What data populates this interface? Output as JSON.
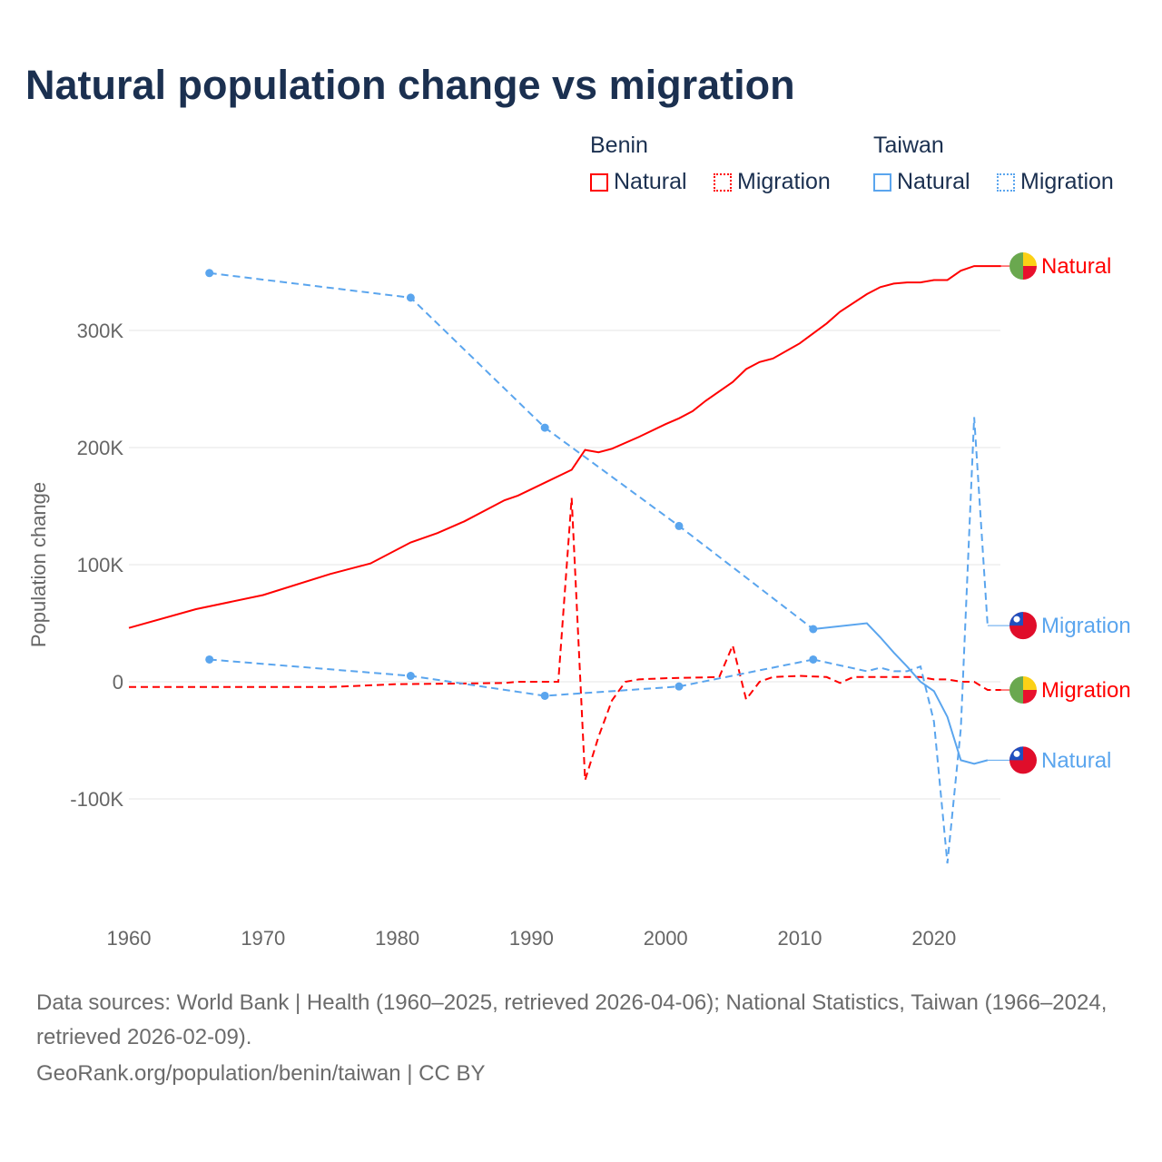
{
  "title": "Natural population change vs migration",
  "legend": {
    "groups": [
      {
        "name": "Benin",
        "color": "#ff0000",
        "items": [
          "Natural",
          "Migration"
        ]
      },
      {
        "name": "Taiwan",
        "color": "#5aa5ee",
        "items": [
          "Natural",
          "Migration"
        ]
      }
    ]
  },
  "footer": {
    "sources": "Data sources: World Bank | Health (1960–2025, retrieved 2026-04-06); National Statistics, Taiwan (1966–2024, retrieved 2026-02-09).",
    "credit": "GeoRank.org/population/benin/taiwan | CC BY"
  },
  "chart_data": {
    "type": "line",
    "title": "Natural population change vs migration",
    "xlabel": "",
    "ylabel": "Population change",
    "xlim": [
      1960,
      2025
    ],
    "ylim": [
      -175000,
      380000
    ],
    "x_ticks": [
      1960,
      1970,
      1980,
      1990,
      2000,
      2010,
      2020
    ],
    "x_tick_labels": [
      "1960",
      "1970",
      "1980",
      "1990",
      "2000",
      "2010",
      "2020"
    ],
    "y_ticks": [
      -100000,
      0,
      100000,
      200000,
      300000
    ],
    "y_tick_labels": [
      "-100K",
      "0",
      "100K",
      "200K",
      "300K"
    ],
    "grid": true,
    "series": [
      {
        "name": "Benin Natural",
        "label": "Natural",
        "country": "Benin",
        "color": "#ff0000",
        "style": "solid",
        "x": [
          1960,
          1965,
          1970,
          1975,
          1978,
          1981,
          1983,
          1985,
          1988,
          1989,
          1991,
          1993,
          1994,
          1995,
          1996,
          1998,
          2000,
          2001,
          2002,
          2003,
          2005,
          2006,
          2007,
          2008,
          2010,
          2012,
          2013,
          2015,
          2016,
          2017,
          2018,
          2019,
          2020,
          2021,
          2022,
          2023,
          2024,
          2025
        ],
        "y": [
          46000,
          62000,
          74000,
          92000,
          101000,
          119000,
          127000,
          137000,
          155000,
          159000,
          170000,
          181000,
          198000,
          196000,
          199000,
          209000,
          220000,
          225000,
          231000,
          240000,
          256000,
          267000,
          273000,
          276000,
          289000,
          306000,
          316000,
          331000,
          337000,
          340000,
          341000,
          341000,
          343000,
          343000,
          351000,
          355000,
          355000,
          355000
        ]
      },
      {
        "name": "Benin Migration",
        "label": "Migration",
        "country": "Benin",
        "color": "#ff0000",
        "style": "dashed",
        "x": [
          1960,
          1975,
          1980,
          1985,
          1988,
          1989,
          1992,
          1993,
          1994,
          1995,
          1996,
          1997,
          1998,
          2000,
          2004,
          2005,
          2006,
          2007,
          2008,
          2010,
          2012,
          2013,
          2014,
          2019,
          2020,
          2021,
          2022,
          2023,
          2024,
          2025
        ],
        "y": [
          -4500,
          -4500,
          -2000,
          -1500,
          -1000,
          0,
          0,
          157000,
          -84000,
          -47000,
          -16000,
          0,
          2000,
          3000,
          4000,
          31000,
          -15000,
          0,
          4000,
          5000,
          4000,
          -1000,
          4000,
          4000,
          2000,
          2000,
          0,
          0,
          -7000,
          -7000
        ]
      },
      {
        "name": "Taiwan Natural",
        "label": "Natural",
        "country": "Taiwan",
        "color": "#5aa5ee",
        "style": "solid",
        "sparse_until": 2011,
        "x": [
          1966,
          1981,
          1991,
          2001,
          2011,
          2015,
          2016,
          2017,
          2018,
          2019,
          2020,
          2021,
          2022,
          2023,
          2024
        ],
        "y": [
          349000,
          328000,
          217000,
          133000,
          45000,
          50000,
          38000,
          25000,
          13000,
          0,
          -8000,
          -30000,
          -67000,
          -70000,
          -67000
        ]
      },
      {
        "name": "Taiwan Migration",
        "label": "Migration",
        "country": "Taiwan",
        "color": "#5aa5ee",
        "style": "dashed",
        "sparse_until": 2011,
        "x": [
          1966,
          1981,
          1991,
          2001,
          2011,
          2015,
          2016,
          2017,
          2018,
          2019,
          2020,
          2021,
          2022,
          2023,
          2024
        ],
        "y": [
          19000,
          5000,
          -12000,
          -4000,
          19000,
          9000,
          12000,
          9000,
          9000,
          13000,
          -34000,
          -155000,
          -40000,
          226000,
          48000
        ]
      }
    ]
  }
}
